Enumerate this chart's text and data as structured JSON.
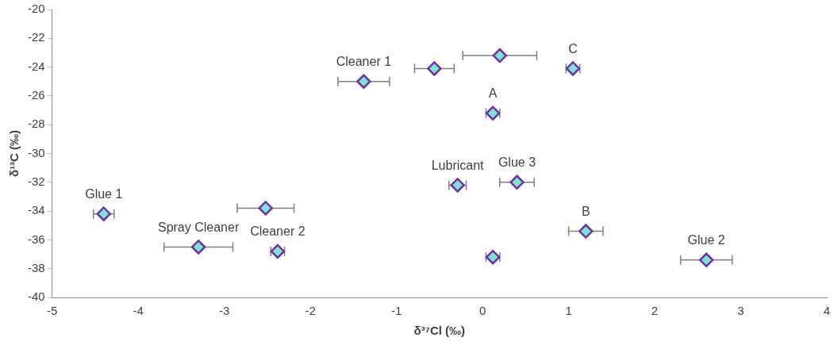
{
  "chart_data": {
    "type": "scatter",
    "xlabel": "δ³⁷Cl (‰)",
    "ylabel": "δ¹³C (‰)",
    "x": [
      -4.4,
      -3.3,
      -2.52,
      -2.38,
      -1.38,
      -0.56,
      0.2,
      1.05,
      0.12,
      -0.29,
      0.4,
      1.2,
      0.12,
      2.6
    ],
    "values": [
      -34.2,
      -36.5,
      -33.8,
      -36.8,
      -25.0,
      -24.1,
      -23.2,
      -24.1,
      -27.2,
      -32.2,
      -32.0,
      -35.4,
      -37.2,
      -37.4
    ],
    "xerrors": [
      0.12,
      0.4,
      0.33,
      0.08,
      0.3,
      0.23,
      0.43,
      0.08,
      0.08,
      0.1,
      0.2,
      0.2,
      0.08,
      0.3
    ],
    "color": "#7fe3d4",
    "marker": "diamond",
    "xlim": [
      -5,
      4
    ],
    "xticks": [
      -5,
      -4,
      -3,
      -2,
      -1,
      0,
      1,
      2,
      3,
      4
    ],
    "ylim": [
      -40,
      -20
    ],
    "yticks": [
      -40,
      -38,
      -36,
      -34,
      -32,
      -30,
      -28,
      -26,
      -24,
      -22,
      -20
    ],
    "grid": false,
    "legend": false,
    "annotations": [
      {
        "text": "Glue 1",
        "x": -4.4,
        "y": -34.2
      },
      {
        "text": "Spray Cleaner",
        "x": -3.3,
        "y": -36.5
      },
      {
        "text": "Cleaner 2",
        "x": -2.38,
        "y": -36.8
      },
      {
        "text": "Cleaner 1",
        "x": -1.38,
        "y": -25.0
      },
      {
        "text": "C",
        "x": 1.05,
        "y": -24.1
      },
      {
        "text": "A",
        "x": 0.12,
        "y": -27.2
      },
      {
        "text": "Lubricant",
        "x": -0.29,
        "y": -32.2
      },
      {
        "text": "Glue 3",
        "x": 0.4,
        "y": -32.0
      },
      {
        "text": "B",
        "x": 1.2,
        "y": -35.4
      },
      {
        "text": "Glue 2",
        "x": 2.6,
        "y": -37.4
      }
    ]
  }
}
